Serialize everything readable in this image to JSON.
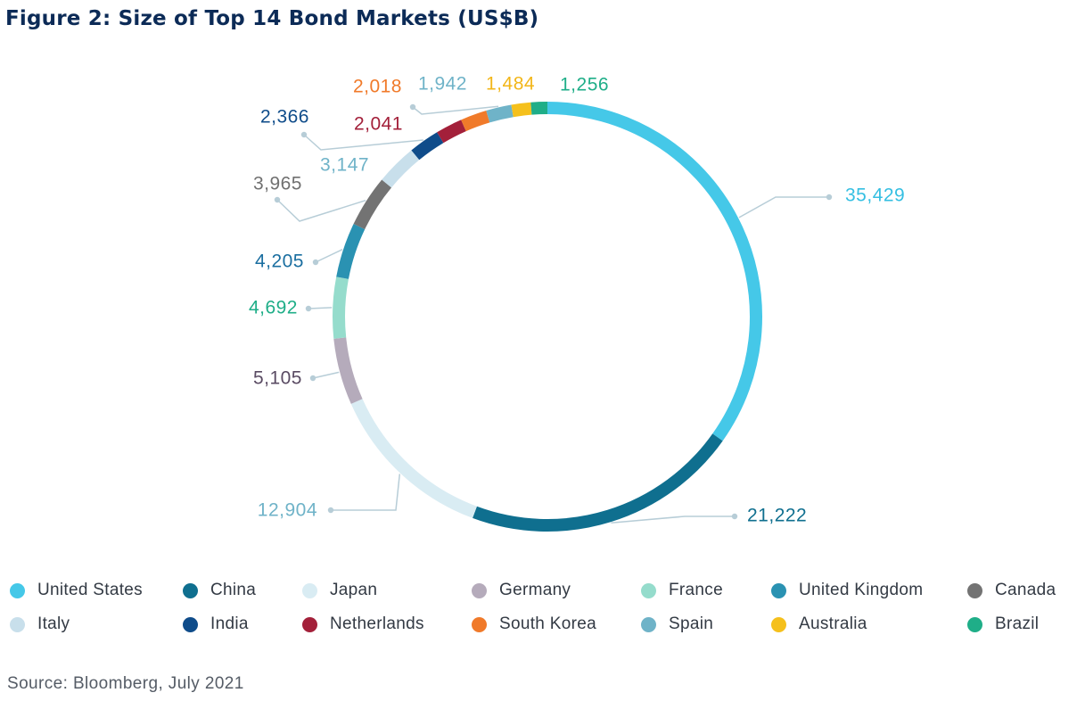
{
  "figure_title": "Figure 2: Size of Top 14 Bond Markets (US$B)",
  "source": "Source: Bloomberg, July 2021",
  "chart_data": {
    "type": "pie",
    "variant": "donut",
    "title": "Figure 2: Size of Top 14 Bond Markets (US$B)",
    "legend_position": "bottom",
    "slices": [
      {
        "label": "United States",
        "value": 35429,
        "value_text": "35,429",
        "color": "#45c8e8"
      },
      {
        "label": "China",
        "value": 21222,
        "value_text": "21,222",
        "color": "#0f6f8f"
      },
      {
        "label": "Japan",
        "value": 12904,
        "value_text": "12,904",
        "color": "#d9ecf3"
      },
      {
        "label": "Germany",
        "value": 5105,
        "value_text": "5,105",
        "color": "#b5abbb"
      },
      {
        "label": "France",
        "value": 4692,
        "value_text": "4,692",
        "color": "#95dccc"
      },
      {
        "label": "United Kingdom",
        "value": 4205,
        "value_text": "4,205",
        "color": "#2a92b2"
      },
      {
        "label": "Canada",
        "value": 3965,
        "value_text": "3,965",
        "color": "#737373"
      },
      {
        "label": "Italy",
        "value": 3147,
        "value_text": "3,147",
        "color": "#c8dfeb"
      },
      {
        "label": "India",
        "value": 2366,
        "value_text": "2,366",
        "color": "#0f4c8a"
      },
      {
        "label": "Netherlands",
        "value": 2041,
        "value_text": "2,041",
        "color": "#a3203a"
      },
      {
        "label": "South Korea",
        "value": 2018,
        "value_text": "2,018",
        "color": "#f07a2a"
      },
      {
        "label": "Spain",
        "value": 1942,
        "value_text": "1,942",
        "color": "#6fb3c8"
      },
      {
        "label": "Australia",
        "value": 1484,
        "value_text": "1,484",
        "color": "#f5c01c"
      },
      {
        "label": "Brazil",
        "value": 1256,
        "value_text": "1,256",
        "color": "#1fae88"
      }
    ],
    "label_colors": {
      "United States": "#35bfe2",
      "China": "#0f6f8f",
      "Japan": "#6fb3c8",
      "Germany": "#5a4b63",
      "France": "#1fae88",
      "United Kingdom": "#1a6ea0",
      "Canada": "#707070",
      "Italy": "#6fb3c8",
      "India": "#0f4c8a",
      "Netherlands": "#a3203a",
      "South Korea": "#f07a2a",
      "Spain": "#6fb3c8",
      "Australia": "#f2b619",
      "Brazil": "#1fae88"
    }
  }
}
